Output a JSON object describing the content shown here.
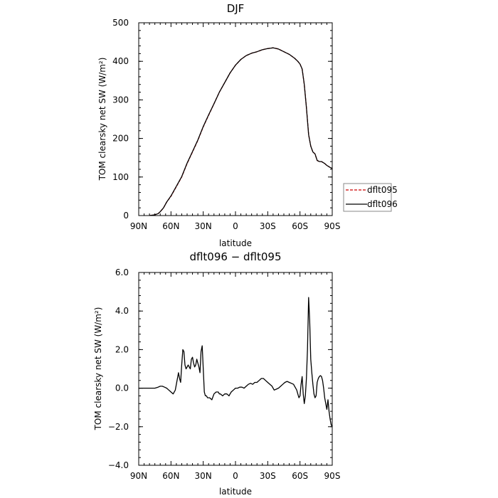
{
  "chart_data": [
    {
      "type": "line",
      "title": "DJF",
      "xlabel": "latitude",
      "ylabel": "TOM clearsky net SW (W/m²)",
      "xlim": [
        90,
        -90
      ],
      "ylim": [
        0,
        500
      ],
      "xticks": [
        {
          "value": 90,
          "label": "90N"
        },
        {
          "value": 60,
          "label": "60N"
        },
        {
          "value": 30,
          "label": "30N"
        },
        {
          "value": 0,
          "label": "0"
        },
        {
          "value": -30,
          "label": "30S"
        },
        {
          "value": -60,
          "label": "60S"
        },
        {
          "value": -90,
          "label": "90S"
        }
      ],
      "yticks": [
        {
          "value": 0,
          "label": "0"
        },
        {
          "value": 100,
          "label": "100"
        },
        {
          "value": 200,
          "label": "200"
        },
        {
          "value": 300,
          "label": "300"
        },
        {
          "value": 400,
          "label": "400"
        },
        {
          "value": 500,
          "label": "500"
        }
      ],
      "legend": "right",
      "series": [
        {
          "name": "dflt095",
          "color": "#cc0000",
          "dash": "dashed",
          "x": [
            80,
            75,
            72,
            70,
            67,
            64,
            60,
            55,
            50,
            45,
            40,
            35,
            30,
            25,
            20,
            15,
            10,
            5,
            0,
            -5,
            -10,
            -15,
            -20,
            -25,
            -30,
            -35,
            -40,
            -45,
            -50,
            -55,
            -58,
            -60,
            -62,
            -64,
            -66,
            -68,
            -70,
            -72,
            -74,
            -76,
            -78,
            -80,
            -83,
            -85,
            -88,
            -90
          ],
          "y": [
            0,
            2,
            5,
            10,
            20,
            35,
            50,
            75,
            100,
            135,
            165,
            195,
            230,
            260,
            290,
            320,
            345,
            370,
            390,
            405,
            415,
            421,
            425,
            430,
            433,
            435,
            432,
            425,
            418,
            408,
            400,
            393,
            380,
            340,
            280,
            210,
            180,
            165,
            160,
            143,
            140,
            140,
            135,
            130,
            125,
            122
          ]
        },
        {
          "name": "dflt096",
          "color": "#000000",
          "dash": "solid",
          "x": [
            80,
            75,
            72,
            70,
            67,
            64,
            60,
            55,
            50,
            45,
            40,
            35,
            30,
            25,
            20,
            15,
            10,
            5,
            0,
            -5,
            -10,
            -15,
            -20,
            -25,
            -30,
            -35,
            -40,
            -45,
            -50,
            -55,
            -58,
            -60,
            -62,
            -64,
            -66,
            -68,
            -70,
            -72,
            -74,
            -76,
            -78,
            -80,
            -83,
            -85,
            -88,
            -90
          ],
          "y": [
            0,
            2,
            5,
            10,
            20,
            35,
            51,
            76,
            101,
            136,
            166,
            196,
            231,
            261,
            290,
            320,
            345,
            370,
            390,
            405,
            415,
            421,
            425,
            430,
            433,
            435,
            432,
            425,
            418,
            408,
            400,
            393,
            380,
            340,
            280,
            210,
            180,
            165,
            160,
            143,
            140,
            140,
            135,
            130,
            125,
            122
          ]
        }
      ]
    },
    {
      "type": "line",
      "title": "dflt096 − dflt095",
      "xlabel": "latitude",
      "ylabel": "TOM clearsky net SW (W/m²)",
      "xlim": [
        90,
        -90
      ],
      "ylim": [
        -4,
        6
      ],
      "xticks": [
        {
          "value": 90,
          "label": "90N"
        },
        {
          "value": 60,
          "label": "60N"
        },
        {
          "value": 30,
          "label": "30N"
        },
        {
          "value": 0,
          "label": "0"
        },
        {
          "value": -30,
          "label": "30S"
        },
        {
          "value": -60,
          "label": "60S"
        },
        {
          "value": -90,
          "label": "90S"
        }
      ],
      "yticks": [
        {
          "value": -4,
          "label": "−4.0"
        },
        {
          "value": -2,
          "label": "−2.0"
        },
        {
          "value": 0,
          "label": "0.0"
        },
        {
          "value": 2,
          "label": "2.0"
        },
        {
          "value": 4,
          "label": "4.0"
        },
        {
          "value": 6,
          "label": "6.0"
        }
      ],
      "series": [
        {
          "color": "#000000",
          "dash": "solid",
          "x": [
            90,
            80,
            75,
            72,
            70,
            68,
            66,
            64,
            62,
            60,
            58,
            56,
            54,
            53,
            52,
            51,
            50,
            49,
            48,
            47,
            46,
            45,
            44,
            43,
            42,
            41,
            40,
            39,
            38,
            37,
            36,
            35,
            34,
            33,
            32,
            31,
            30,
            29,
            28,
            27,
            26,
            24,
            22,
            20,
            18,
            16,
            15,
            14,
            12,
            10,
            8,
            6,
            5,
            4,
            2,
            0,
            -2,
            -4,
            -6,
            -8,
            -10,
            -12,
            -14,
            -16,
            -18,
            -20,
            -22,
            -24,
            -26,
            -28,
            -30,
            -32,
            -34,
            -36,
            -38,
            -40,
            -42,
            -44,
            -46,
            -48,
            -50,
            -52,
            -54,
            -55,
            -56,
            -57,
            -58,
            -59,
            -60,
            -61,
            -62,
            -63,
            -64,
            -65,
            -66,
            -67,
            -68,
            -69,
            -70,
            -71,
            -72,
            -73,
            -74,
            -75,
            -76,
            -77,
            -78,
            -79,
            -80,
            -81,
            -82,
            -83,
            -84,
            -85,
            -86,
            -87,
            -88,
            -89,
            -90
          ],
          "y": [
            0,
            0,
            0,
            0.05,
            0.1,
            0.1,
            0.05,
            0,
            -0.1,
            -0.2,
            -0.3,
            -0.1,
            0.5,
            0.8,
            0.5,
            0.3,
            1.2,
            2.0,
            1.9,
            1.2,
            1.0,
            1.1,
            1.2,
            1.1,
            1.0,
            1.5,
            1.6,
            1.3,
            1.1,
            1.2,
            1.5,
            1.3,
            1.1,
            0.8,
            1.9,
            2.2,
            1.0,
            -0.2,
            -0.4,
            -0.4,
            -0.5,
            -0.5,
            -0.6,
            -0.3,
            -0.2,
            -0.2,
            -0.3,
            -0.3,
            -0.4,
            -0.3,
            -0.3,
            -0.4,
            -0.3,
            -0.2,
            -0.1,
            0.0,
            0.0,
            0.05,
            0.05,
            0.0,
            0.1,
            0.2,
            0.25,
            0.2,
            0.3,
            0.3,
            0.4,
            0.5,
            0.5,
            0.4,
            0.3,
            0.2,
            0.1,
            -0.1,
            -0.05,
            0.0,
            0.1,
            0.2,
            0.3,
            0.35,
            0.3,
            0.25,
            0.2,
            0.1,
            0.0,
            -0.1,
            -0.3,
            -0.5,
            -0.4,
            0.2,
            0.6,
            -0.3,
            -0.8,
            -0.4,
            0.5,
            2.0,
            4.7,
            3.5,
            1.5,
            0.8,
            0.2,
            -0.3,
            -0.5,
            -0.4,
            0.3,
            0.5,
            0.6,
            0.65,
            0.6,
            0.4,
            0.0,
            -0.5,
            -0.8,
            -1.1,
            -0.6,
            -1.2,
            -1.6,
            -1.9,
            -2.0
          ]
        }
      ]
    }
  ]
}
